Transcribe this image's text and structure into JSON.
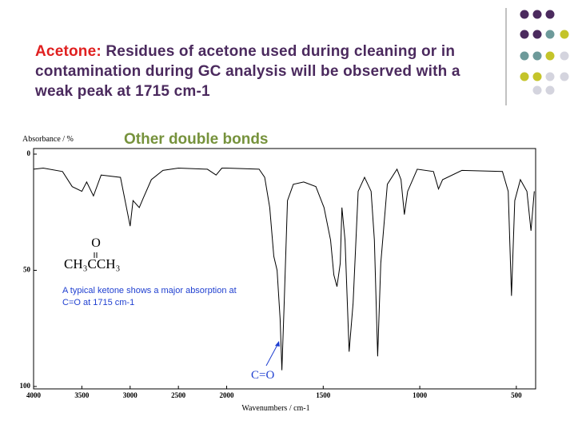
{
  "slide": {
    "title_lead": "Acetone:",
    "title_text": "Residues of acetone used during cleaning or in contamination during GC analysis will be observed with a weak peak at 1715 cm-1",
    "subtitle": "Other double bonds"
  },
  "chart_data": {
    "type": "line",
    "y_label": "Absorbance / %",
    "x_label": "Wavenumbers / cm-1",
    "xlim": [
      4000,
      400
    ],
    "x_scale_break": 2000,
    "ylim": [
      100,
      0
    ],
    "xticks": [
      4000,
      3500,
      3000,
      2500,
      2000,
      1500,
      1000,
      500
    ],
    "yticks": [
      0,
      50,
      100
    ],
    "color": "#000000",
    "x": [
      4000,
      3900,
      3700,
      3600,
      3500,
      3450,
      3380,
      3300,
      3100,
      3000,
      2970,
      2905,
      2865,
      2780,
      2660,
      2500,
      2200,
      2110,
      2050,
      2000,
      1832,
      1803,
      1777,
      1756,
      1739,
      1723,
      1714,
      1702,
      1685,
      1655,
      1601,
      1538,
      1496,
      1462,
      1445,
      1429,
      1412,
      1403,
      1387,
      1366,
      1345,
      1319,
      1286,
      1252,
      1235,
      1218,
      1202,
      1168,
      1118,
      1097,
      1080,
      1063,
      1013,
      929,
      903,
      882,
      782,
      572,
      542,
      525,
      508,
      479,
      445,
      424,
      407
    ],
    "values": [
      6.5,
      6,
      7.5,
      14,
      16,
      12,
      18,
      9,
      10,
      31,
      20,
      23,
      19,
      11,
      7,
      6,
      6.5,
      9,
      6,
      6,
      6.5,
      10,
      23,
      44,
      50,
      71,
      93,
      64,
      20,
      13,
      12,
      14,
      23,
      37,
      52,
      57,
      47,
      23,
      37,
      85,
      64,
      16,
      10,
      16,
      37,
      87,
      47,
      13,
      6.5,
      11,
      26,
      16,
      6.5,
      7.5,
      15,
      11,
      7,
      7.5,
      16,
      61,
      20,
      11,
      16,
      33,
      16
    ],
    "annotations": {
      "formula_o": "O",
      "formula": "CH₃CCH₃",
      "note_line1": "A typical ketone shows a major absorption at",
      "note_line2": "C=O at 1715 cm-1",
      "peak_label": "C=O"
    }
  }
}
